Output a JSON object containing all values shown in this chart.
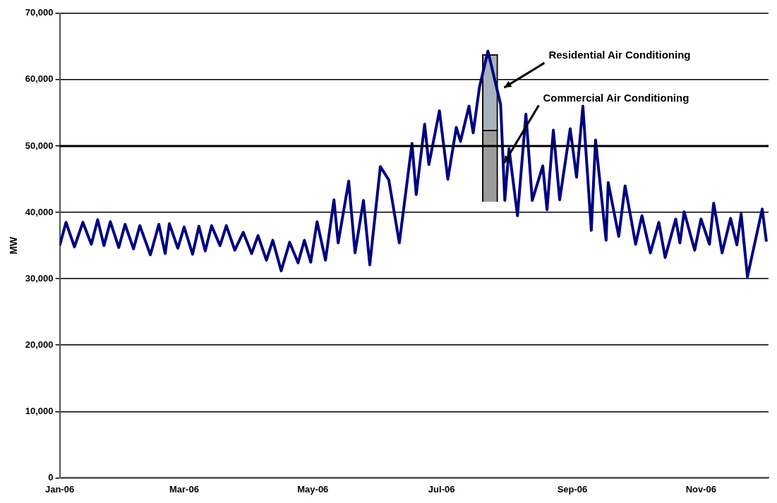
{
  "chart_data": {
    "type": "line",
    "ylabel": "MW",
    "xlim": [
      "2006-01-01",
      "2006-12-03"
    ],
    "xticks": [
      {
        "value": "2006-01-01",
        "label": "Jan-06"
      },
      {
        "value": "2006-03-01",
        "label": "Mar-06"
      },
      {
        "value": "2006-05-01",
        "label": "May-06"
      },
      {
        "value": "2006-07-01",
        "label": "Jul-06"
      },
      {
        "value": "2006-09-01",
        "label": "Sep-06"
      },
      {
        "value": "2006-11-01",
        "label": "Nov-06"
      }
    ],
    "ylim": [
      0,
      70000
    ],
    "yticks": [
      {
        "value": 0,
        "label": "0"
      },
      {
        "value": 10000,
        "label": "10,000"
      },
      {
        "value": 20000,
        "label": "20,000"
      },
      {
        "value": 30000,
        "label": "30,000"
      },
      {
        "value": 40000,
        "label": "40,000"
      },
      {
        "value": 50000,
        "label": "50,000"
      },
      {
        "value": 60000,
        "label": "60,000"
      },
      {
        "value": 70000,
        "label": "70,000"
      }
    ],
    "grid": "y",
    "legend": false,
    "marker": "none",
    "line_style": "solid",
    "ref_lines": [
      {
        "axis": "y",
        "value": 50000,
        "color": "#000000"
      }
    ],
    "series": [
      {
        "color": "#000080",
        "x": [
          "2006-01-01",
          "2006-01-04",
          "2006-01-08",
          "2006-01-12",
          "2006-01-16",
          "2006-01-19",
          "2006-01-22",
          "2006-01-25",
          "2006-01-29",
          "2006-02-01",
          "2006-02-05",
          "2006-02-08",
          "2006-02-13",
          "2006-02-17",
          "2006-02-20",
          "2006-02-22",
          "2006-02-26",
          "2006-03-01",
          "2006-03-05",
          "2006-03-08",
          "2006-03-11",
          "2006-03-14",
          "2006-03-18",
          "2006-03-21",
          "2006-03-25",
          "2006-03-29",
          "2006-04-02",
          "2006-04-05",
          "2006-04-09",
          "2006-04-12",
          "2006-04-16",
          "2006-04-20",
          "2006-04-24",
          "2006-04-27",
          "2006-04-30",
          "2006-05-03",
          "2006-05-07",
          "2006-05-11",
          "2006-05-13",
          "2006-05-18",
          "2006-05-21",
          "2006-05-25",
          "2006-05-28",
          "2006-06-02",
          "2006-06-06",
          "2006-06-11",
          "2006-06-17",
          "2006-06-19",
          "2006-06-23",
          "2006-06-25",
          "2006-06-30",
          "2006-07-04",
          "2006-07-08",
          "2006-07-10",
          "2006-07-14",
          "2006-07-16",
          "2006-07-19",
          "2006-07-23",
          "2006-07-29",
          "2006-07-31",
          "2006-08-02",
          "2006-08-06",
          "2006-08-10",
          "2006-08-13",
          "2006-08-18",
          "2006-08-20",
          "2006-08-23",
          "2006-08-26",
          "2006-08-31",
          "2006-09-03",
          "2006-09-06",
          "2006-09-10",
          "2006-09-12",
          "2006-09-17",
          "2006-09-18",
          "2006-09-23",
          "2006-09-26",
          "2006-10-01",
          "2006-10-04",
          "2006-10-08",
          "2006-10-12",
          "2006-10-15",
          "2006-10-20",
          "2006-10-22",
          "2006-10-24",
          "2006-10-29",
          "2006-11-01",
          "2006-11-05",
          "2006-11-07",
          "2006-11-11",
          "2006-11-15",
          "2006-11-18",
          "2006-11-20",
          "2006-11-23",
          "2006-11-30",
          "2006-12-02"
        ],
        "values": [
          35000,
          38500,
          34800,
          38500,
          35200,
          38900,
          35000,
          38600,
          34700,
          38200,
          34500,
          38000,
          33600,
          38200,
          33800,
          38300,
          34600,
          37800,
          33700,
          37900,
          34200,
          38000,
          35000,
          38000,
          34300,
          37000,
          33800,
          36500,
          32800,
          35800,
          31200,
          35500,
          32400,
          35800,
          32500,
          38600,
          32800,
          41900,
          35400,
          44700,
          33900,
          41800,
          32100,
          46900,
          44900,
          35400,
          50400,
          42700,
          53300,
          47200,
          55300,
          45000,
          52800,
          50700,
          56000,
          52000,
          58900,
          64300,
          56300,
          41800,
          49600,
          39500,
          54800,
          41800,
          47000,
          40400,
          52400,
          41900,
          52600,
          45300,
          56000,
          37300,
          50900,
          35800,
          44500,
          36400,
          44000,
          35200,
          39500,
          33900,
          38500,
          33200,
          39000,
          35400,
          40100,
          34300,
          39000,
          35200,
          41400,
          33900,
          39100,
          35100,
          39800,
          30300,
          40500,
          35600
        ]
      },
      {
        "type": "bar",
        "name": "Commercial Air Conditioning",
        "color": "#9c9c9c",
        "x": [
          "2006-07-24"
        ],
        "base": [
          41600
        ],
        "values": [
          10800
        ]
      },
      {
        "type": "bar",
        "name": "Residential Air Conditioning",
        "color": "#a9b3bd",
        "x": [
          "2006-07-24"
        ],
        "base": [
          52400
        ],
        "values": [
          11400
        ]
      }
    ]
  }
}
